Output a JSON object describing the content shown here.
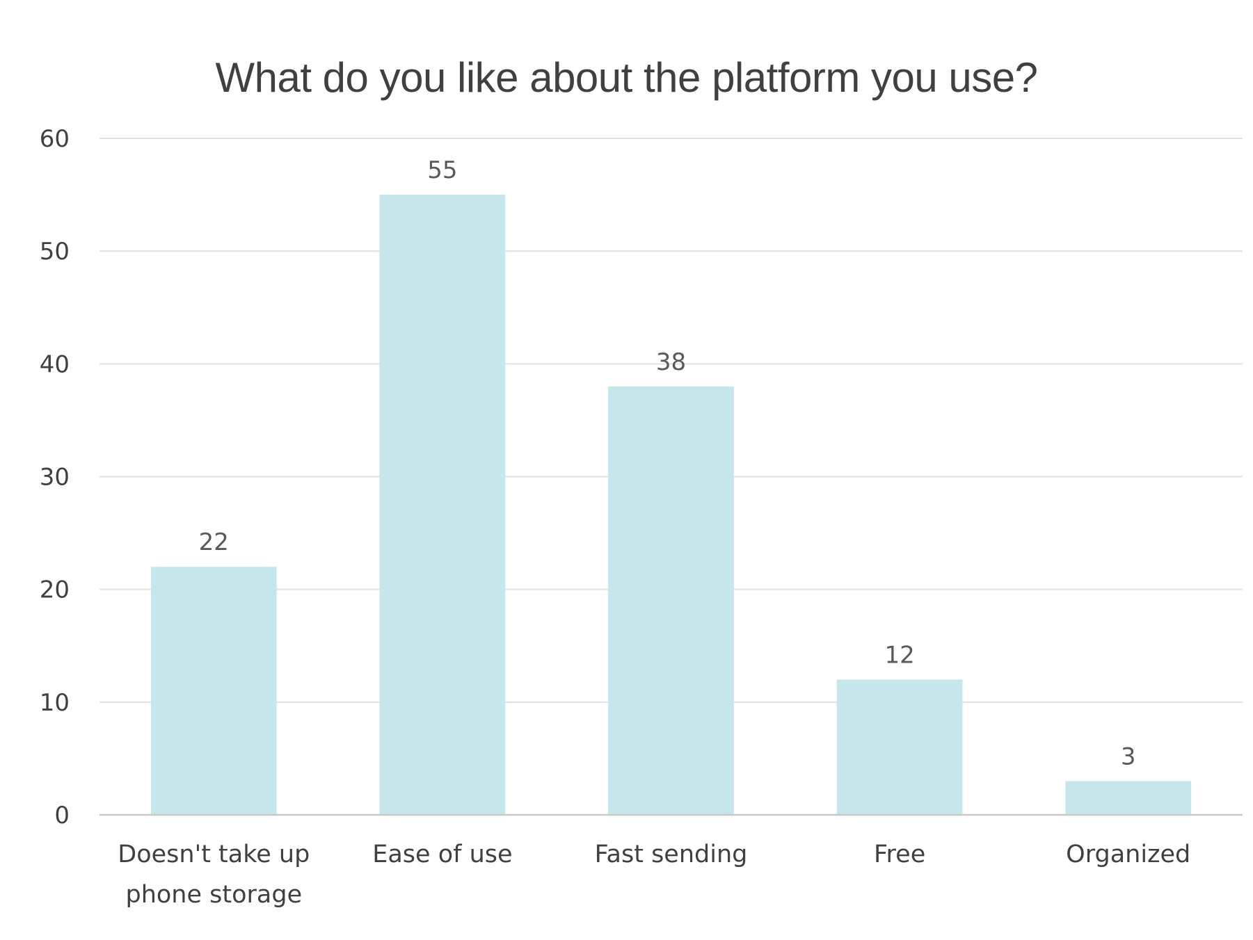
{
  "chart_data": {
    "type": "bar",
    "title": "What do you like about the platform you use?",
    "categories": [
      [
        "Doesn't take up",
        "phone storage"
      ],
      [
        "Ease of use"
      ],
      [
        "Fast sending"
      ],
      [
        "Free"
      ],
      [
        "Organized"
      ]
    ],
    "values": [
      22,
      55,
      38,
      12,
      3
    ],
    "data_labels": [
      "22",
      "55",
      "38",
      "12",
      "3"
    ],
    "yticks": [
      "0",
      "10",
      "20",
      "30",
      "40",
      "50",
      "60"
    ],
    "xlabel": "",
    "ylabel": "",
    "ylim": [
      0,
      60
    ],
    "grid": true,
    "legend": "none",
    "colors": {
      "bar": "#c5e6ea",
      "grid": "#e1e1e1",
      "axis": "#c8c8c8",
      "text": "#404040"
    }
  }
}
